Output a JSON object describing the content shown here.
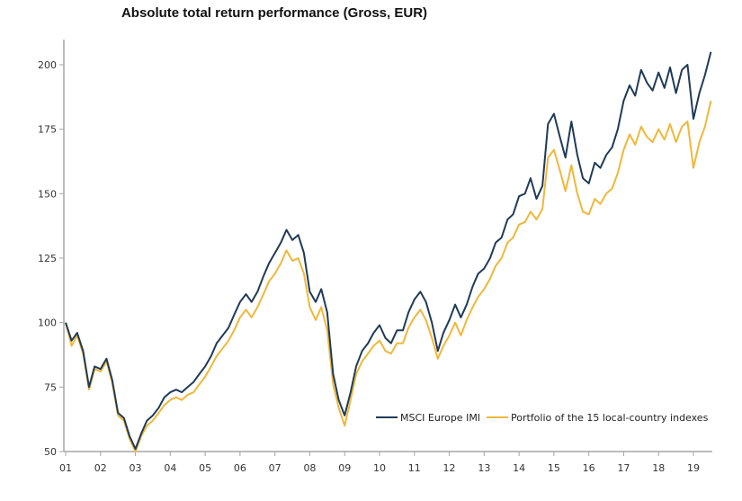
{
  "chart_data": {
    "type": "line",
    "title": "Absolute total return performance (Gross, EUR)",
    "xlabel": "",
    "ylabel": "",
    "ylim": [
      50,
      210
    ],
    "yticks": [
      50,
      75,
      100,
      125,
      150,
      175,
      200
    ],
    "xlim": [
      2001,
      2019.55
    ],
    "xtick_labels": [
      "01",
      "02",
      "03",
      "04",
      "05",
      "06",
      "07",
      "08",
      "09",
      "10",
      "11",
      "12",
      "13",
      "14",
      "15",
      "16",
      "17",
      "18",
      "19"
    ],
    "xtick_values": [
      2001,
      2002,
      2003,
      2004,
      2005,
      2006,
      2007,
      2008,
      2009,
      2010,
      2011,
      2012,
      2013,
      2014,
      2015,
      2016,
      2017,
      2018,
      2019
    ],
    "grid": false,
    "legend_position": "bottom-right",
    "x": [
      2001.0,
      2001.17,
      2001.33,
      2001.5,
      2001.67,
      2001.83,
      2002.0,
      2002.17,
      2002.33,
      2002.5,
      2002.67,
      2002.83,
      2003.0,
      2003.17,
      2003.33,
      2003.5,
      2003.67,
      2003.83,
      2004.0,
      2004.17,
      2004.33,
      2004.5,
      2004.67,
      2004.83,
      2005.0,
      2005.17,
      2005.33,
      2005.5,
      2005.67,
      2005.83,
      2006.0,
      2006.17,
      2006.33,
      2006.5,
      2006.67,
      2006.83,
      2007.0,
      2007.17,
      2007.33,
      2007.5,
      2007.67,
      2007.83,
      2008.0,
      2008.17,
      2008.33,
      2008.5,
      2008.67,
      2008.83,
      2009.0,
      2009.17,
      2009.33,
      2009.5,
      2009.67,
      2009.83,
      2010.0,
      2010.17,
      2010.33,
      2010.5,
      2010.67,
      2010.83,
      2011.0,
      2011.17,
      2011.33,
      2011.5,
      2011.67,
      2011.83,
      2012.0,
      2012.17,
      2012.33,
      2012.5,
      2012.67,
      2012.83,
      2013.0,
      2013.17,
      2013.33,
      2013.5,
      2013.67,
      2013.83,
      2014.0,
      2014.17,
      2014.33,
      2014.5,
      2014.67,
      2014.83,
      2015.0,
      2015.17,
      2015.33,
      2015.5,
      2015.67,
      2015.83,
      2016.0,
      2016.17,
      2016.33,
      2016.5,
      2016.67,
      2016.83,
      2017.0,
      2017.17,
      2017.33,
      2017.5,
      2017.67,
      2017.83,
      2018.0,
      2018.17,
      2018.33,
      2018.5,
      2018.67,
      2018.83,
      2019.0,
      2019.17,
      2019.33,
      2019.5
    ],
    "series": [
      {
        "name": "MSCI Europe IMI",
        "color": "#1f3b57",
        "values": [
          100,
          93,
          96,
          89,
          75,
          83,
          82,
          86,
          78,
          65,
          63,
          56,
          51,
          57,
          62,
          64,
          67,
          71,
          73,
          74,
          73,
          75,
          77,
          80,
          83,
          87,
          92,
          95,
          98,
          103,
          108,
          111,
          108,
          112,
          118,
          123,
          127,
          131,
          136,
          132,
          134,
          127,
          112,
          108,
          113,
          104,
          80,
          70,
          64,
          73,
          83,
          89,
          92,
          96,
          99,
          94,
          92,
          97,
          97,
          104,
          109,
          112,
          108,
          100,
          89,
          96,
          101,
          107,
          102,
          107,
          114,
          119,
          121,
          125,
          131,
          133,
          140,
          142,
          149,
          150,
          156,
          148,
          153,
          177,
          181,
          172,
          164,
          178,
          165,
          156,
          154,
          162,
          160,
          165,
          168,
          175,
          186,
          192,
          188,
          198,
          193,
          190,
          197,
          191,
          199,
          189,
          198,
          200,
          179,
          189,
          196,
          205,
          203
        ]
      },
      {
        "name": "Portfolio of the 15 local-country indexes",
        "color": "#f0b73a",
        "values": [
          100,
          91,
          95,
          88,
          74,
          82,
          81,
          85,
          77,
          64,
          62,
          55,
          50,
          56,
          60,
          62,
          65,
          68,
          70,
          71,
          70,
          72,
          73,
          76,
          79,
          83,
          87,
          90,
          93,
          97,
          102,
          105,
          102,
          106,
          111,
          116,
          119,
          123,
          128,
          124,
          125,
          119,
          106,
          101,
          106,
          97,
          76,
          67,
          60,
          70,
          80,
          85,
          88,
          91,
          93,
          89,
          88,
          92,
          92,
          98,
          102,
          105,
          101,
          94,
          86,
          91,
          95,
          100,
          95,
          101,
          106,
          110,
          113,
          117,
          122,
          125,
          131,
          133,
          138,
          139,
          143,
          140,
          144,
          164,
          167,
          159,
          151,
          161,
          150,
          143,
          142,
          148,
          146,
          150,
          152,
          158,
          167,
          173,
          169,
          176,
          172,
          170,
          175,
          171,
          177,
          170,
          176,
          178,
          160,
          170,
          176,
          186,
          185
        ]
      }
    ]
  }
}
